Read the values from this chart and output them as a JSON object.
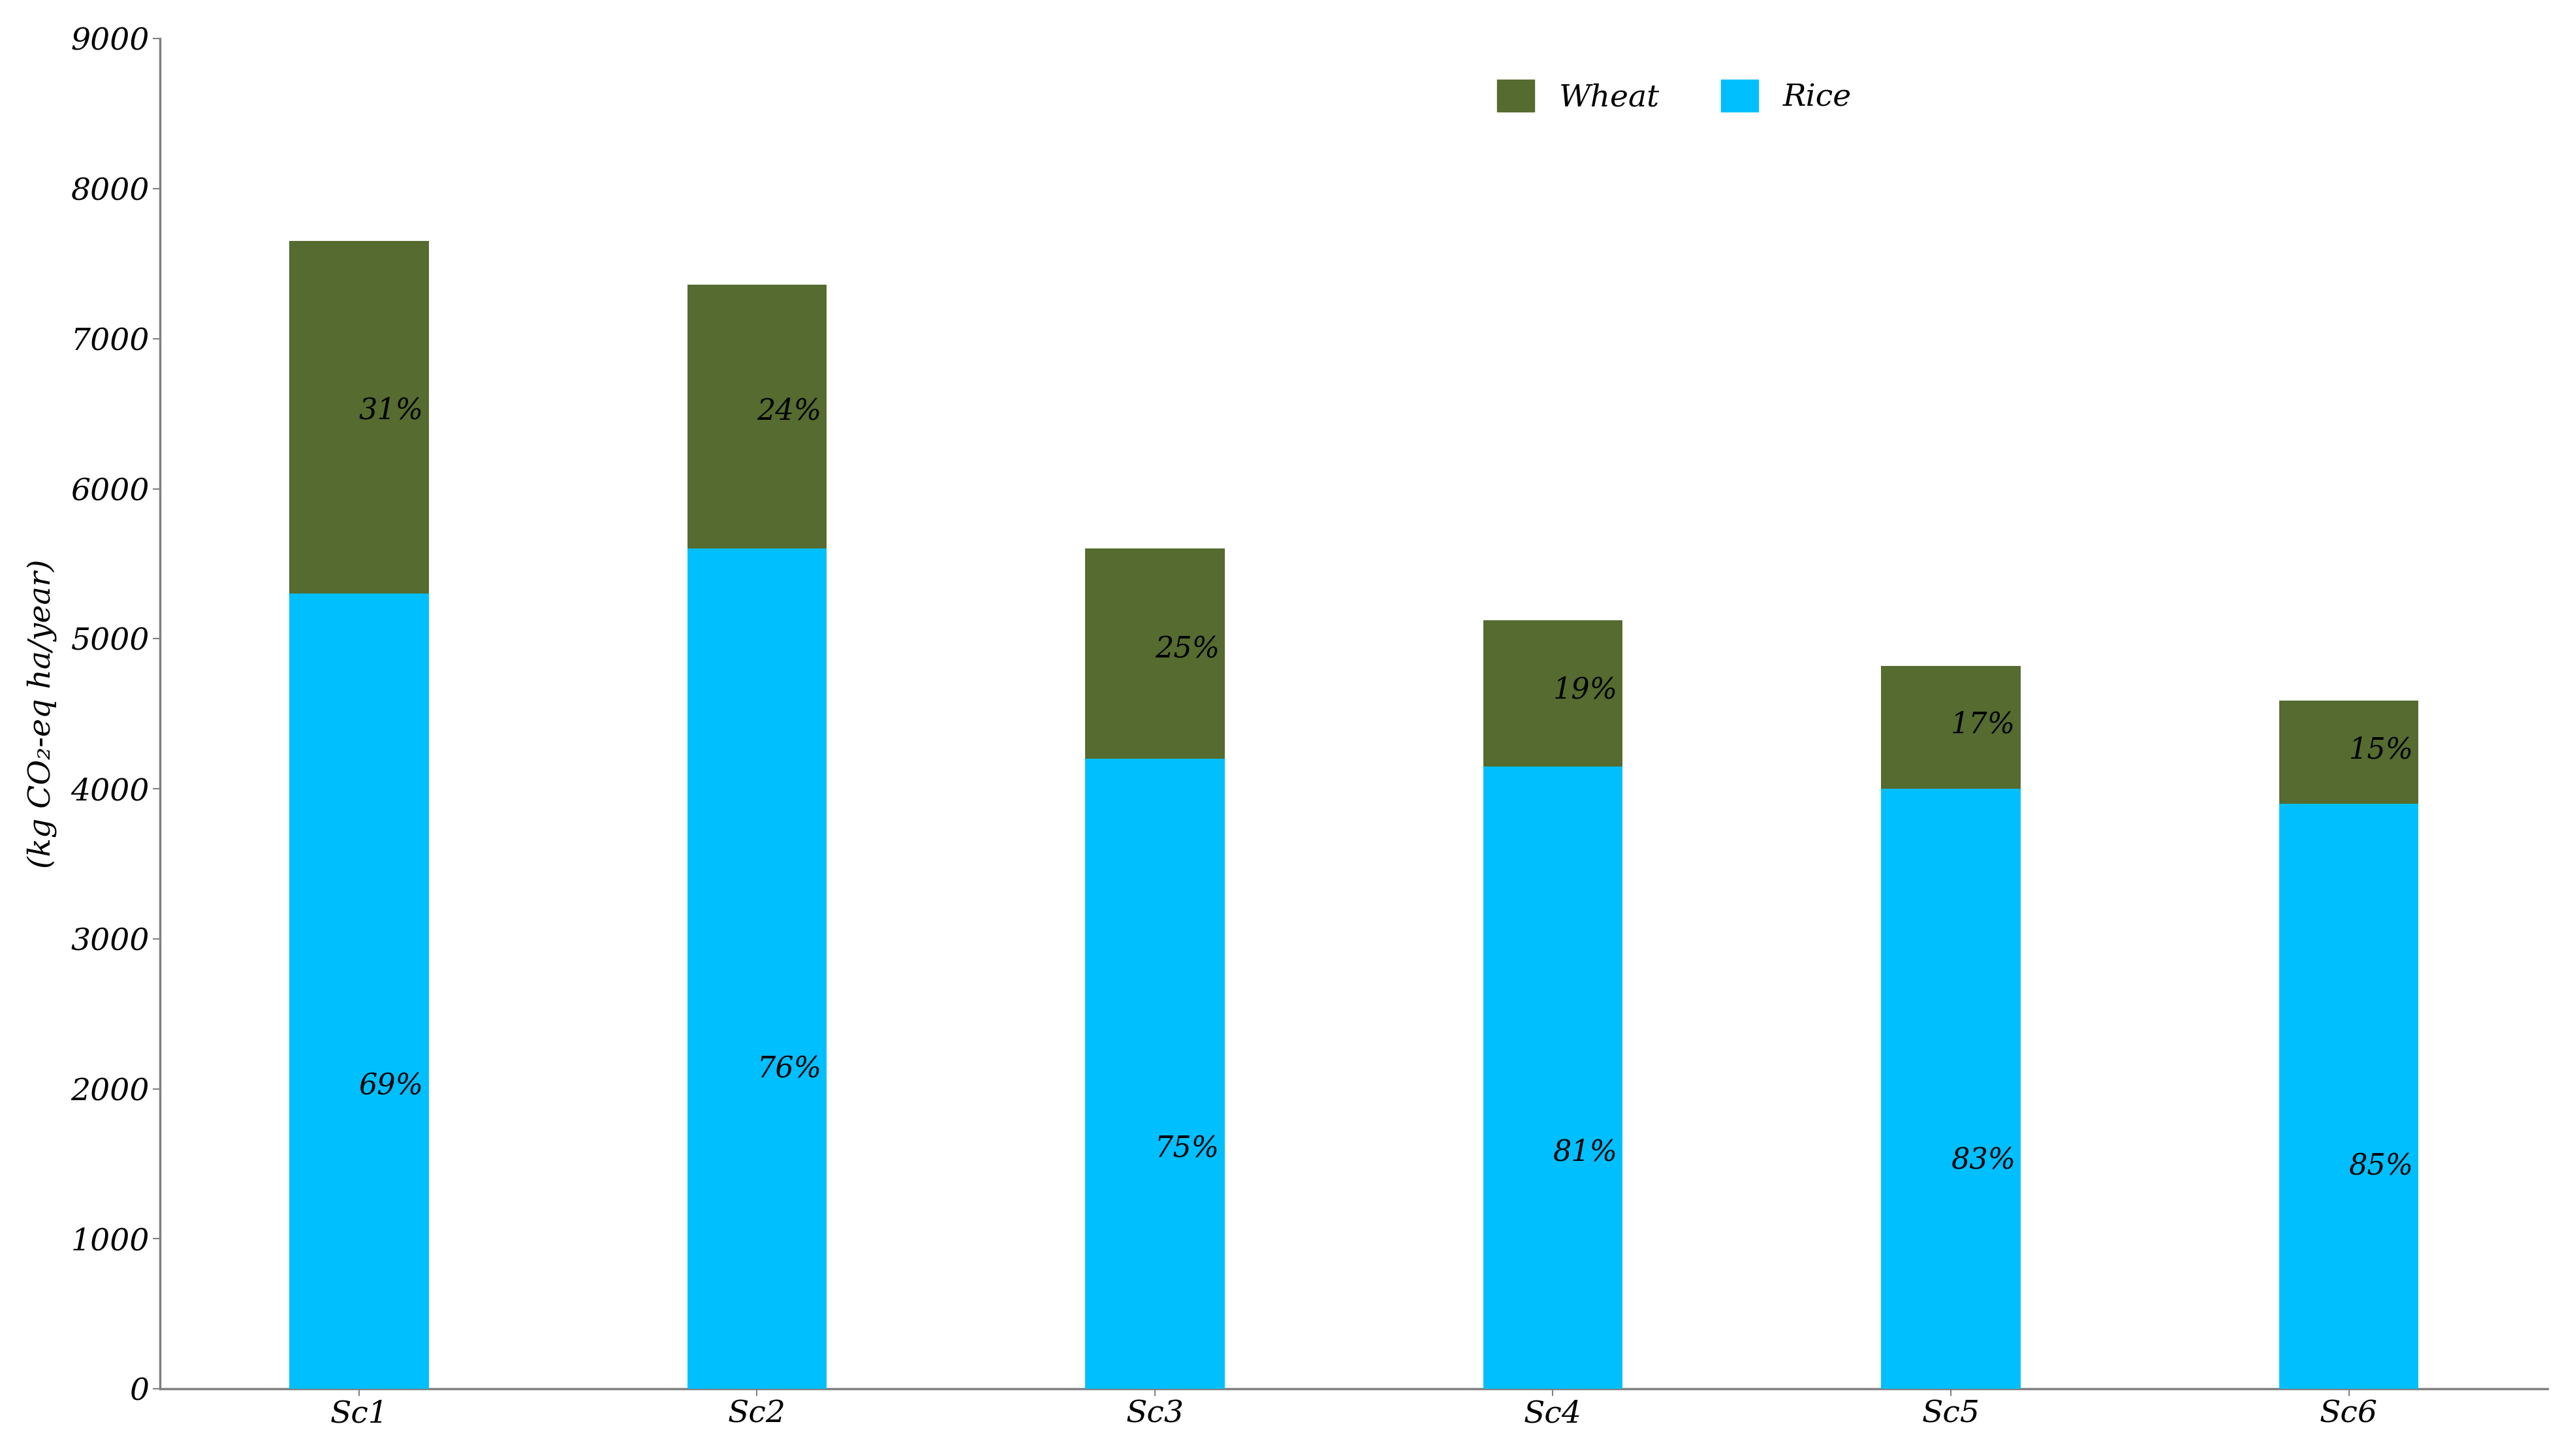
{
  "categories": [
    "Sc1",
    "Sc2",
    "Sc3",
    "Sc4",
    "Sc5",
    "Sc6"
  ],
  "rice_values": [
    5300,
    5600,
    4200,
    4150,
    4000,
    3900
  ],
  "wheat_values": [
    2350,
    1760,
    1400,
    975,
    820,
    690
  ],
  "rice_pct": [
    "69%",
    "76%",
    "75%",
    "81%",
    "83%",
    "85%"
  ],
  "wheat_pct": [
    "31%",
    "24%",
    "25%",
    "19%",
    "17%",
    "15%"
  ],
  "rice_color": "#00BFFF",
  "wheat_color": "#556B2F",
  "ylabel": "(kg CO₂-eq ha/year)",
  "ylim": [
    0,
    9000
  ],
  "yticks": [
    0,
    1000,
    2000,
    3000,
    4000,
    5000,
    6000,
    7000,
    8000,
    9000
  ],
  "legend_wheat": "Wheat",
  "legend_rice": "Rice",
  "bar_width": 0.35,
  "rice_pct_fontsize": 32,
  "wheat_pct_fontsize": 32,
  "tick_fontsize": 34,
  "ylabel_fontsize": 34,
  "legend_fontsize": 34,
  "background_color": "#ffffff",
  "spine_color": "#808080"
}
